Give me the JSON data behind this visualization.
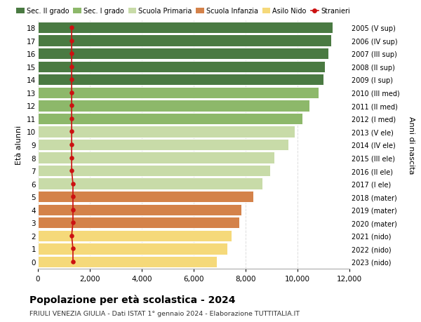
{
  "ages": [
    0,
    1,
    2,
    3,
    4,
    5,
    6,
    7,
    8,
    9,
    10,
    11,
    12,
    13,
    14,
    15,
    16,
    17,
    18
  ],
  "right_labels": [
    "2023 (nido)",
    "2022 (nido)",
    "2021 (nido)",
    "2020 (mater)",
    "2019 (mater)",
    "2018 (mater)",
    "2017 (I ele)",
    "2016 (II ele)",
    "2015 (III ele)",
    "2014 (IV ele)",
    "2013 (V ele)",
    "2012 (I med)",
    "2011 (II med)",
    "2010 (III med)",
    "2009 (I sup)",
    "2008 (II sup)",
    "2007 (III sup)",
    "2006 (IV sup)",
    "2005 (V sup)"
  ],
  "bar_values": [
    6900,
    7300,
    7450,
    7750,
    7850,
    8300,
    8650,
    8950,
    9100,
    9650,
    9900,
    10200,
    10450,
    10800,
    11000,
    11050,
    11200,
    11300,
    11350
  ],
  "stranieri_values": [
    1350,
    1350,
    1300,
    1350,
    1350,
    1350,
    1350,
    1300,
    1300,
    1300,
    1300,
    1300,
    1300,
    1300,
    1300,
    1300,
    1300,
    1300,
    1300
  ],
  "bar_colors": [
    "#f5d97a",
    "#f5d97a",
    "#f5d97a",
    "#d4824a",
    "#d4824a",
    "#d4824a",
    "#c8dba8",
    "#c8dba8",
    "#c8dba8",
    "#c8dba8",
    "#c8dba8",
    "#8db86a",
    "#8db86a",
    "#8db86a",
    "#4a7a42",
    "#4a7a42",
    "#4a7a42",
    "#4a7a42",
    "#4a7a42"
  ],
  "legend_labels": [
    "Sec. II grado",
    "Sec. I grado",
    "Scuola Primaria",
    "Scuola Infanzia",
    "Asilo Nido",
    "Stranieri"
  ],
  "legend_colors": [
    "#4a7a42",
    "#8db86a",
    "#c8dba8",
    "#d4824a",
    "#f5d97a",
    "#cc1111"
  ],
  "stranieri_color": "#cc1111",
  "title": "Popolazione per età scolastica - 2024",
  "subtitle": "FRIULI VENEZIA GIULIA - Dati ISTAT 1° gennaio 2024 - Elaborazione TUTTITALIA.IT",
  "xlabel_right": "Anni di nascita",
  "ylabel": "Età alunni",
  "xlim": [
    0,
    12000
  ],
  "background_color": "#ffffff",
  "grid_color": "#dddddd"
}
